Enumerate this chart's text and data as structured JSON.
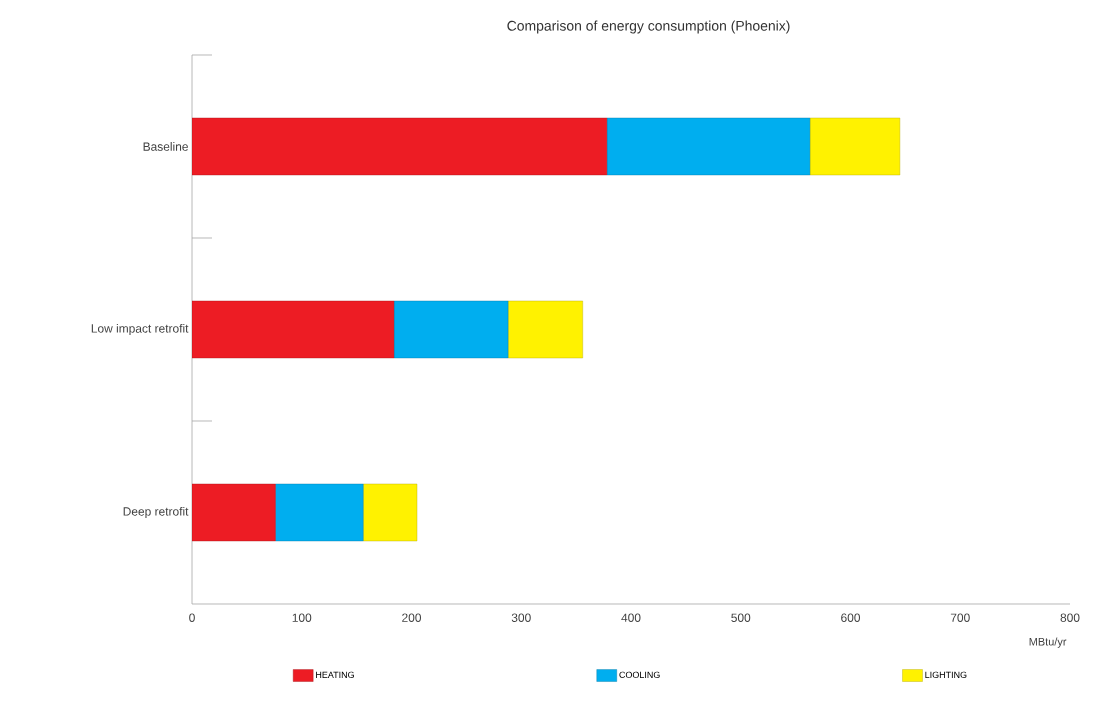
{
  "chart_data": {
    "type": "bar",
    "orientation": "horizontal",
    "stacked": true,
    "title": "Comparison of energy consumption (Phoenix)",
    "xlabel": "MBtu/yr",
    "categories": [
      "Baseline",
      "Low impact retrofit",
      "Deep retrofit"
    ],
    "series": [
      {
        "name": "HEATING",
        "color": "#ed1c24",
        "values": [
          378,
          184,
          76
        ]
      },
      {
        "name": "COOLING",
        "color": "#00aeef",
        "values": [
          185,
          104,
          80
        ]
      },
      {
        "name": "LIGHTING",
        "color": "#fff200",
        "values": [
          82,
          68,
          49
        ]
      }
    ],
    "xlim": [
      0,
      800
    ],
    "xticks": [
      0,
      100,
      200,
      300,
      400,
      500,
      600,
      700,
      800
    ],
    "legend": "bottom"
  }
}
